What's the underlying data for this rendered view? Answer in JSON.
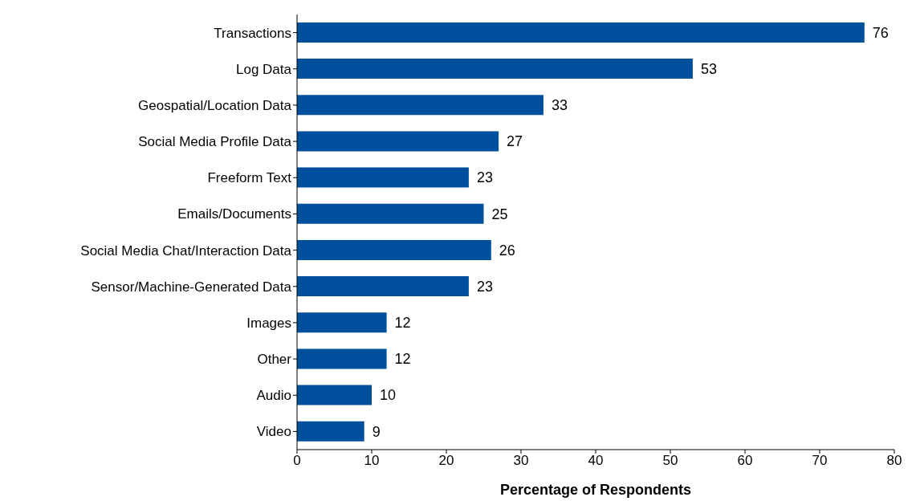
{
  "chart_data": {
    "type": "bar",
    "orientation": "horizontal",
    "categories": [
      "Transactions",
      "Log Data",
      "Geospatial/Location Data",
      "Social Media Profile Data",
      "Freeform Text",
      "Emails/Documents",
      "Social Media Chat/Interaction Data",
      "Sensor/Machine-Generated Data",
      "Images",
      "Other",
      "Audio",
      "Video"
    ],
    "values": [
      76,
      53,
      33,
      27,
      23,
      25,
      26,
      23,
      12,
      12,
      10,
      9
    ],
    "color": "#00509e",
    "xlim": [
      0,
      80
    ],
    "xticks": [
      0,
      10,
      20,
      30,
      40,
      50,
      60,
      70,
      80
    ],
    "xlabel": "Percentage of Respondents",
    "data_labels": true
  }
}
